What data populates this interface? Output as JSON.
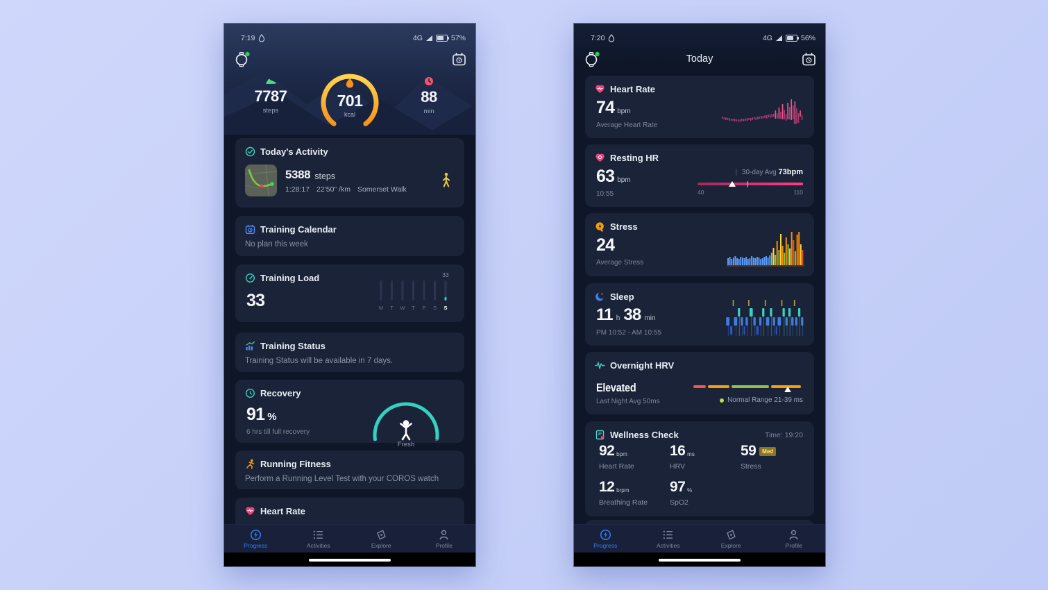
{
  "colors": {
    "page_bg": "#c6d0f8",
    "screen_bg": "#0e1627",
    "card_bg": "#1a2337",
    "accent_blue": "#2f7bf6",
    "accent_teal": "#35d0c0",
    "accent_pink": "#ea4c89",
    "accent_orange": "#f5a623",
    "text_primary": "#eef1f7",
    "text_secondary": "#7c8499"
  },
  "left": {
    "status": {
      "time": "7:19",
      "network": "4G",
      "battery_pct": "57%"
    },
    "hero": {
      "steps_value": "7787",
      "steps_label": "steps",
      "kcal_value": "701",
      "kcal_label": "kcal",
      "min_value": "88",
      "min_label": "min"
    },
    "activity": {
      "title": "Today's Activity",
      "steps_value": "5388",
      "steps_unit": "steps",
      "duration": "1:28:17",
      "pace": "22'50\" /km",
      "name": "Somerset Walk"
    },
    "training_calendar": {
      "title": "Training Calendar",
      "subtitle": "No plan this week"
    },
    "training_load": {
      "title": "Training Load",
      "value": "33"
    },
    "training_status": {
      "title": "Training Status",
      "subtitle": "Training Status will be available in 7 days."
    },
    "recovery": {
      "title": "Recovery",
      "value": "91",
      "unit": "%",
      "subtitle": "6 hrs till full recovery",
      "gauge_label": "Fresh"
    },
    "running_fitness": {
      "title": "Running Fitness",
      "subtitle": "Perform a Running Level Test with your COROS watch"
    },
    "heart_rate_partial": {
      "title": "Heart Rate"
    }
  },
  "right": {
    "status": {
      "time": "7:20",
      "network": "4G",
      "battery_pct": "56%"
    },
    "header_title": "Today",
    "heart_rate": {
      "title": "Heart Rate",
      "value": "74",
      "unit": "bpm",
      "subtitle": "Average Heart Rate"
    },
    "resting_hr": {
      "title": "Resting HR",
      "value": "63",
      "unit": "bpm",
      "time": "10:55",
      "avg_label": "30-day Avg",
      "avg_value": "73bpm",
      "range_min": "40",
      "range_max": "110"
    },
    "stress": {
      "title": "Stress",
      "value": "24",
      "subtitle": "Average Stress"
    },
    "sleep": {
      "title": "Sleep",
      "hours": "11",
      "hours_unit": "h",
      "minutes": "38",
      "minutes_unit": "min",
      "subtitle": "PM 10:52 - AM 10:55"
    },
    "hrv": {
      "title": "Overnight HRV",
      "value": "Elevated",
      "subtitle": "Last Night Avg 50ms",
      "range_label": "Normal Range 21-39 ms"
    },
    "wellness": {
      "title": "Wellness Check",
      "time_label": "Time: 19:20",
      "metrics": [
        {
          "value": "92",
          "unit": "bpm",
          "label": "Heart Rate"
        },
        {
          "value": "16",
          "unit": "ms",
          "label": "HRV"
        },
        {
          "value": "59",
          "unit": "",
          "badge": "Med",
          "label": "Stress"
        },
        {
          "value": "12",
          "unit": "brpm",
          "label": "Breathing Rate"
        },
        {
          "value": "97",
          "unit": "%",
          "label": "SpO2"
        }
      ]
    }
  },
  "nav": {
    "items": [
      {
        "label": "Progress",
        "active": true
      },
      {
        "label": "Activities",
        "active": false
      },
      {
        "label": "Explore",
        "active": false
      },
      {
        "label": "Profile",
        "active": false
      }
    ]
  },
  "charts": {
    "heart_rate_bars": [
      [
        31,
        3
      ],
      [
        32,
        3
      ],
      [
        32,
        4
      ],
      [
        33,
        3
      ],
      [
        33,
        4
      ],
      [
        34,
        3
      ],
      [
        34,
        3
      ],
      [
        34,
        4
      ],
      [
        35,
        3
      ],
      [
        35,
        3
      ],
      [
        35,
        4
      ],
      [
        34,
        3
      ],
      [
        34,
        4
      ],
      [
        34,
        3
      ],
      [
        33,
        4
      ],
      [
        33,
        3
      ],
      [
        33,
        4
      ],
      [
        32,
        4
      ],
      [
        32,
        3
      ],
      [
        32,
        4
      ],
      [
        31,
        4
      ],
      [
        31,
        3
      ],
      [
        30,
        4
      ],
      [
        30,
        4
      ],
      [
        29,
        4
      ],
      [
        29,
        5
      ],
      [
        28,
        4
      ],
      [
        28,
        5
      ],
      [
        27,
        5
      ],
      [
        27,
        4
      ],
      [
        22,
        12,
        1
      ],
      [
        26,
        8,
        0
      ],
      [
        18,
        16,
        1
      ],
      [
        24,
        10,
        0
      ],
      [
        13,
        22,
        1
      ],
      [
        21,
        14,
        0
      ],
      [
        27,
        10,
        0
      ],
      [
        11,
        24,
        1
      ],
      [
        17,
        18,
        0
      ],
      [
        6,
        30,
        1
      ],
      [
        15,
        20,
        0
      ],
      [
        9,
        33,
        1
      ],
      [
        19,
        22,
        0
      ],
      [
        26,
        14,
        0
      ],
      [
        22,
        9,
        1
      ],
      [
        29,
        7,
        0
      ]
    ],
    "hr_colors": {
      "base": "#a63a70",
      "bright": "#ef5390"
    },
    "stress_bars": [
      [
        10,
        0
      ],
      [
        12,
        0
      ],
      [
        9,
        0
      ],
      [
        11,
        0
      ],
      [
        13,
        0
      ],
      [
        10,
        0
      ],
      [
        9,
        0
      ],
      [
        12,
        0
      ],
      [
        11,
        0
      ],
      [
        10,
        0
      ],
      [
        12,
        0
      ],
      [
        9,
        0
      ],
      [
        10,
        0
      ],
      [
        13,
        0
      ],
      [
        11,
        0
      ],
      [
        10,
        0
      ],
      [
        12,
        0
      ],
      [
        11,
        0
      ],
      [
        9,
        0
      ],
      [
        10,
        0
      ],
      [
        12,
        0
      ],
      [
        13,
        0
      ],
      [
        11,
        0
      ],
      [
        14,
        0
      ],
      [
        18,
        1
      ],
      [
        25,
        2
      ],
      [
        15,
        1
      ],
      [
        35,
        3
      ],
      [
        22,
        1
      ],
      [
        45,
        2
      ],
      [
        28,
        3
      ],
      [
        18,
        1
      ],
      [
        40,
        3
      ],
      [
        30,
        1
      ],
      [
        24,
        2
      ],
      [
        48,
        3
      ],
      [
        36,
        4
      ],
      [
        20,
        1
      ],
      [
        44,
        3
      ],
      [
        50,
        3
      ],
      [
        30,
        2
      ],
      [
        22,
        4
      ]
    ],
    "stress_palette": [
      "#5b9bf8",
      "#8bc34a",
      "#fdd835",
      "#fb8c00",
      "#f4511e"
    ],
    "stress_baseline_color": "#7a4a1d",
    "sleep_segments": [
      [
        "l",
        4
      ],
      [
        "d",
        3
      ],
      [
        "a",
        1
      ],
      [
        "l",
        4
      ],
      [
        "r",
        3
      ],
      [
        "l",
        3
      ],
      [
        "d",
        2
      ],
      [
        "l",
        3
      ],
      [
        "a",
        1
      ],
      [
        "r",
        4
      ],
      [
        "l",
        3
      ],
      [
        "d",
        3
      ],
      [
        "l",
        3
      ],
      [
        "r",
        3
      ],
      [
        "a",
        1
      ],
      [
        "l",
        4
      ],
      [
        "r",
        3
      ],
      [
        "l",
        3
      ],
      [
        "d",
        2
      ],
      [
        "l",
        4
      ],
      [
        "a",
        1
      ],
      [
        "r",
        3
      ],
      [
        "l",
        3
      ],
      [
        "r",
        3
      ],
      [
        "l",
        3
      ],
      [
        "a",
        1
      ],
      [
        "l",
        3
      ],
      [
        "r",
        3
      ],
      [
        "l",
        3
      ]
    ],
    "sleep_levels": {
      "a": [
        2,
        9
      ],
      "r": [
        14,
        12
      ],
      "l": [
        27,
        12
      ],
      "d": [
        40,
        12
      ]
    },
    "sleep_colors": {
      "a": "#b8a14d",
      "r": "#39cfc4",
      "l": "#3f7de0",
      "d": "#2b55c8"
    },
    "training_load": {
      "value_label": "33",
      "days": [
        "M",
        "T",
        "W",
        "T",
        "F",
        "S",
        "S"
      ],
      "active_day_index": 6,
      "track_color": "#2b3550",
      "dot_color": "#35d0c0"
    },
    "recovery_gauge": {
      "percent": 91,
      "teal": "#35d0c0",
      "grey": "#566179"
    },
    "resting_slider": {
      "min": 40,
      "max": 110,
      "value": 63,
      "avg": 73
    },
    "hrv_bar": {
      "segments": [
        [
          "#f4564a",
          12
        ],
        [
          "#f59e0b",
          20
        ],
        [
          "#8bc34a",
          36
        ],
        [
          "#f59e0b",
          28
        ]
      ],
      "marker_pct": 86
    },
    "kcal_ring": {
      "start": 233,
      "end": -53,
      "grad": [
        "#ffd54f",
        "#f6921e"
      ]
    }
  }
}
